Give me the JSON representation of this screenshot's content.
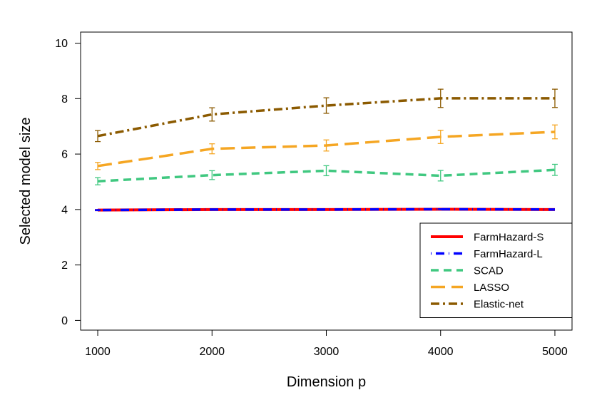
{
  "chart_data": {
    "type": "line",
    "xlabel": "Dimension p",
    "ylabel": "Selected model size",
    "x": [
      1000,
      2000,
      3000,
      4000,
      5000
    ],
    "xlim": [
      850,
      5150
    ],
    "ylim": [
      -0.35,
      10.4
    ],
    "x_ticks": [
      "1000",
      "2000",
      "3000",
      "4000",
      "5000"
    ],
    "y_ticks": [
      "0",
      "2",
      "4",
      "6",
      "8",
      "10"
    ],
    "legend_position": "bottom-right",
    "grid": false,
    "series": [
      {
        "name": "FarmHazard-S",
        "color": "#ff0000",
        "dash": "solid",
        "values": [
          3.98,
          4.0,
          4.0,
          4.01,
          4.0
        ],
        "err": [
          0.02,
          0.0,
          0.0,
          0.02,
          0.0
        ]
      },
      {
        "name": "FarmHazard-L",
        "color": "#0000ff",
        "dash": "dotdash",
        "values": [
          3.98,
          4.0,
          4.0,
          4.01,
          4.0
        ],
        "err": [
          0.02,
          0.0,
          0.0,
          0.02,
          0.0
        ]
      },
      {
        "name": "SCAD",
        "color": "#40c880",
        "dash": "dashed",
        "values": [
          5.02,
          5.24,
          5.4,
          5.22,
          5.43
        ],
        "err": [
          0.13,
          0.16,
          0.18,
          0.19,
          0.2
        ]
      },
      {
        "name": "LASSO",
        "color": "#f5a623",
        "dash": "longdash",
        "values": [
          5.57,
          6.19,
          6.31,
          6.62,
          6.8
        ],
        "err": [
          0.13,
          0.18,
          0.2,
          0.24,
          0.25
        ]
      },
      {
        "name": "Elastic-net",
        "color": "#8b5a00",
        "dash": "twodash",
        "values": [
          6.65,
          7.43,
          7.75,
          8.01,
          8.01
        ],
        "err": [
          0.2,
          0.24,
          0.28,
          0.33,
          0.33
        ]
      }
    ]
  }
}
